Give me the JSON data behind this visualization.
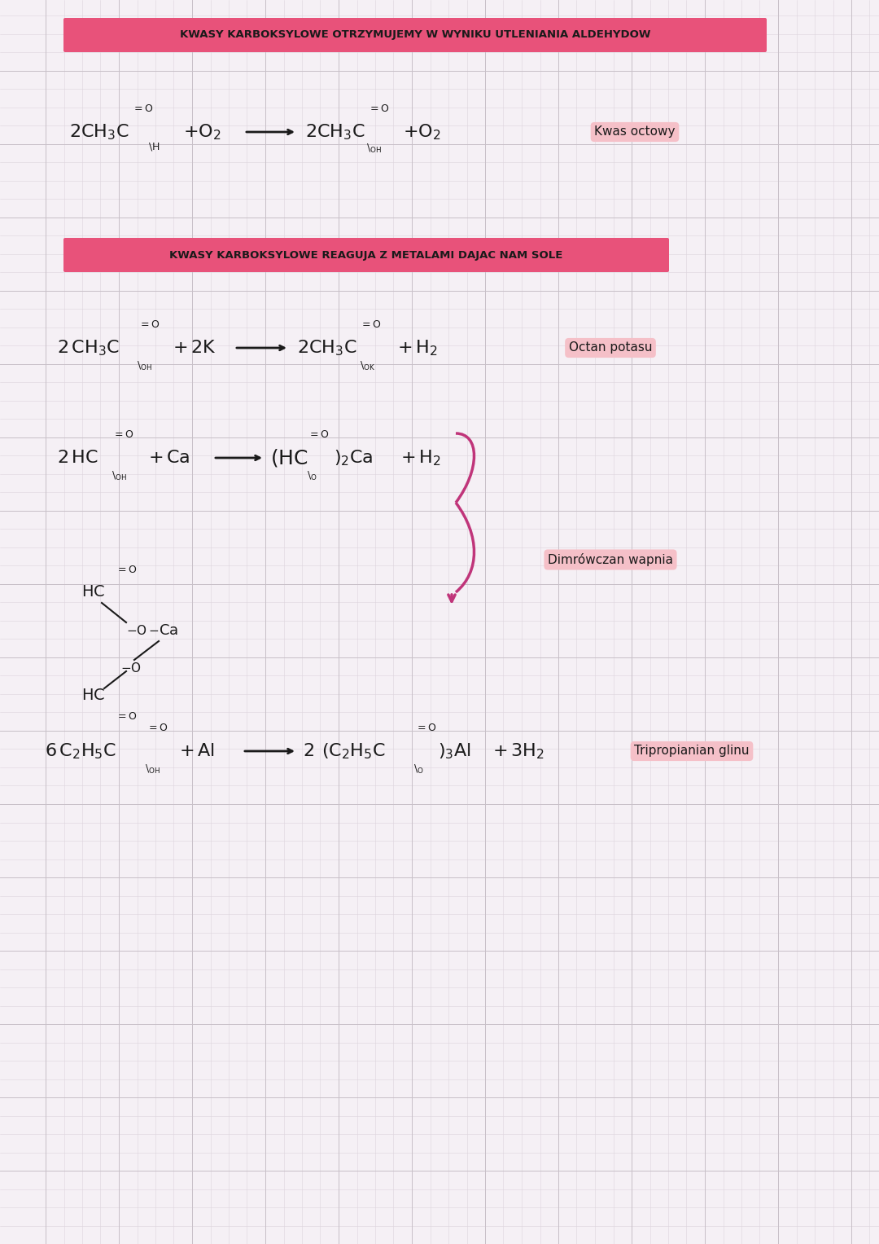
{
  "bg_color": "#f5f0f5",
  "grid_color": "#d8d0d8",
  "grid_minor_color": "#e8e0e8",
  "title1_text": "KWASY KARBOKSYLOWE OTRZYMUJEMY W WYNIKU UTLENIANIA ALDEHYDOW",
  "title2_text": "KWASY KARBOKSYLOWE REAGUJA Z METALAMI DAJAC NAM SOLE",
  "title_bg": "#e8527a",
  "title_text_color": "#1a1a1a",
  "label1_text": "Kwas octowy",
  "label2_text": "Octan potasu",
  "label3_text": "Dimrówczan wapnia",
  "label4_text": "Tripropianian glinu",
  "label_bg": "#f5c0c8",
  "arrow_color": "#c0357a",
  "formula_color": "#1a1a1a"
}
